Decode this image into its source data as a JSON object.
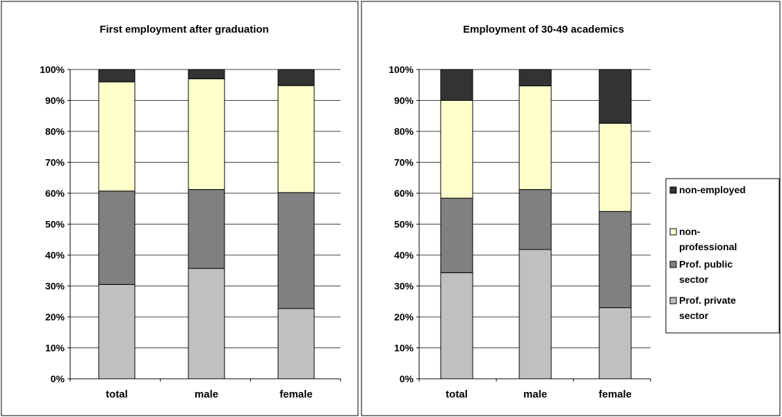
{
  "colors": {
    "non_employed": "#333333",
    "non_professional": "#ffffcc",
    "prof_public": "#808080",
    "prof_private": "#c0c0c0",
    "outline": "#000000",
    "grid": "#000000"
  },
  "legend": {
    "items": [
      {
        "key": "non_employed",
        "lines": [
          "non-employed"
        ]
      },
      {
        "key": "non_professional",
        "lines": [
          "non-",
          "professional"
        ]
      },
      {
        "key": "prof_public",
        "lines": [
          "Prof. public",
          "sector"
        ]
      },
      {
        "key": "prof_private",
        "lines": [
          "Prof. private",
          "sector"
        ]
      }
    ]
  },
  "chart_data": [
    {
      "type": "bar",
      "stacked": "percent",
      "title": "First employment after graduation",
      "categories": [
        "total",
        "male",
        "female"
      ],
      "yticks": [
        "0%",
        "10%",
        "20%",
        "30%",
        "40%",
        "50%",
        "60%",
        "70%",
        "80%",
        "90%",
        "100%"
      ],
      "ylim": [
        0,
        100
      ],
      "grid": true,
      "series": [
        {
          "name": "Prof. private sector",
          "key": "prof_private",
          "values": [
            30.5,
            35.7,
            22.7
          ]
        },
        {
          "name": "Prof. public sector",
          "key": "prof_public",
          "values": [
            30.2,
            25.5,
            37.5
          ]
        },
        {
          "name": "non-professional",
          "key": "non_professional",
          "values": [
            35.3,
            35.8,
            34.6
          ]
        },
        {
          "name": "non-employed",
          "key": "non_employed",
          "values": [
            4.0,
            3.0,
            5.2
          ]
        }
      ]
    },
    {
      "type": "bar",
      "stacked": "percent",
      "title": "Employment of 30-49 academics",
      "categories": [
        "total",
        "male",
        "female"
      ],
      "yticks": [
        "0%",
        "10%",
        "20%",
        "30%",
        "40%",
        "50%",
        "60%",
        "70%",
        "80%",
        "90%",
        "100%"
      ],
      "ylim": [
        0,
        100
      ],
      "grid": true,
      "series": [
        {
          "name": "Prof. private sector",
          "key": "prof_private",
          "values": [
            34.3,
            41.8,
            23.0
          ]
        },
        {
          "name": "Prof. public sector",
          "key": "prof_public",
          "values": [
            24.1,
            19.4,
            31.1
          ]
        },
        {
          "name": "non-professional",
          "key": "non_professional",
          "values": [
            31.6,
            33.5,
            28.5
          ]
        },
        {
          "name": "non-employed",
          "key": "non_employed",
          "values": [
            10.0,
            5.3,
            17.4
          ]
        }
      ]
    }
  ]
}
